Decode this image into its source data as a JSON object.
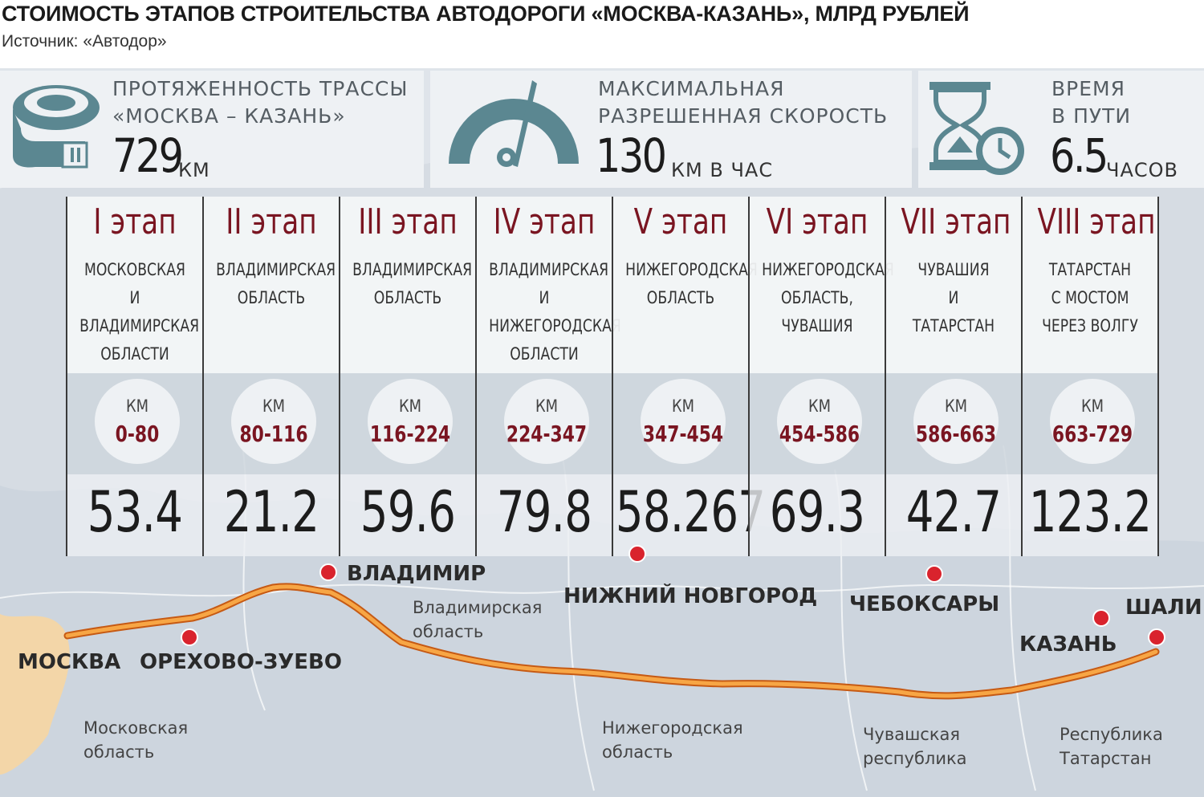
{
  "header": {
    "title": "СТОИМОСТЬ ЭТАПОВ СТРОИТЕЛЬСТВА АВТОДОРОГИ «МОСКВА-КАЗАНЬ», МЛРД РУБЛЕЙ",
    "source": "Источник: «Автодор»"
  },
  "info": {
    "length": {
      "line1": "ПРОТЯЖЕННОСТЬ ТРАССЫ",
      "line2": "«МОСКВА – КАЗАНЬ»",
      "value": "729",
      "unit": "КМ"
    },
    "speed": {
      "line1": "МАКСИМАЛЬНАЯ",
      "line2": "РАЗРЕШЕННАЯ СКОРОСТЬ",
      "value": "130",
      "unit": "КМ В ЧАС"
    },
    "time": {
      "line1": "ВРЕМЯ",
      "line2": "В ПУТИ",
      "value": "6.5",
      "unit": "ЧАСОВ"
    }
  },
  "icons": {
    "length": "tape-measure-icon",
    "speed": "speedometer-icon",
    "time": "hourglass-clock-icon"
  },
  "colors": {
    "accent": "#7a1521",
    "icon": "#5b8791",
    "route": "#f39a37",
    "city_dot": "#d9232d"
  },
  "chart_data": {
    "type": "table",
    "title": "СТОИМОСТЬ ЭТАПОВ СТРОИТЕЛЬСТВА АВТОДОРОГИ «МОСКВА-КАЗАНЬ», МЛРД РУБЛЕЙ",
    "km_label": "КМ",
    "stages": [
      {
        "name": "I этап",
        "region": [
          "МОСКОВСКАЯ",
          "И",
          "ВЛАДИМИРСКАЯ",
          "ОБЛАСТИ"
        ],
        "km": "0-80",
        "cost": "53.4"
      },
      {
        "name": "II этап",
        "region": [
          "ВЛАДИМИРСКАЯ",
          "ОБЛАСТЬ"
        ],
        "km": "80-116",
        "cost": "21.2"
      },
      {
        "name": "III этап",
        "region": [
          "ВЛАДИМИРСКАЯ",
          "ОБЛАСТЬ"
        ],
        "km": "116-224",
        "cost": "59.6"
      },
      {
        "name": "IV этап",
        "region": [
          "ВЛАДИМИРСКАЯ",
          "И",
          "НИЖЕГОРОДСКАЯ",
          "ОБЛАСТИ"
        ],
        "km": "224-347",
        "cost": "79.8"
      },
      {
        "name": "V этап",
        "region": [
          "НИЖЕГОРОДСКАЯ",
          "ОБЛАСТЬ"
        ],
        "km": "347-454",
        "cost": "58.267"
      },
      {
        "name": "VI этап",
        "region": [
          "НИЖЕГОРОДСКАЯ",
          "ОБЛАСТЬ,",
          "ЧУВАШИЯ"
        ],
        "km": "454-586",
        "cost": "69.3"
      },
      {
        "name": "VII этап",
        "region": [
          "ЧУВАШИЯ",
          "И",
          "ТАТАРСТАН"
        ],
        "km": "586-663",
        "cost": "42.7"
      },
      {
        "name": "VIII этап",
        "region": [
          "ТАТАРСТАН",
          "С МОСТОМ",
          "ЧЕРЕЗ ВОЛГУ"
        ],
        "km": "663-729",
        "cost": "123.2"
      }
    ]
  },
  "map": {
    "cities": [
      {
        "name": "МОСКВА"
      },
      {
        "name": "ОРЕХОВО-ЗУЕВО"
      },
      {
        "name": "ВЛАДИМИР"
      },
      {
        "name": "НИЖНИЙ НОВГОРОД"
      },
      {
        "name": "ЧЕБОКСАРЫ"
      },
      {
        "name": "КАЗАНЬ"
      },
      {
        "name": "ШАЛИ"
      }
    ],
    "regions": [
      {
        "name": "Владимирская область"
      },
      {
        "name": "Московская область"
      },
      {
        "name": "Нижегородская область"
      },
      {
        "name": "Чувашская республика"
      },
      {
        "name": "Республика Татарстан"
      }
    ]
  }
}
